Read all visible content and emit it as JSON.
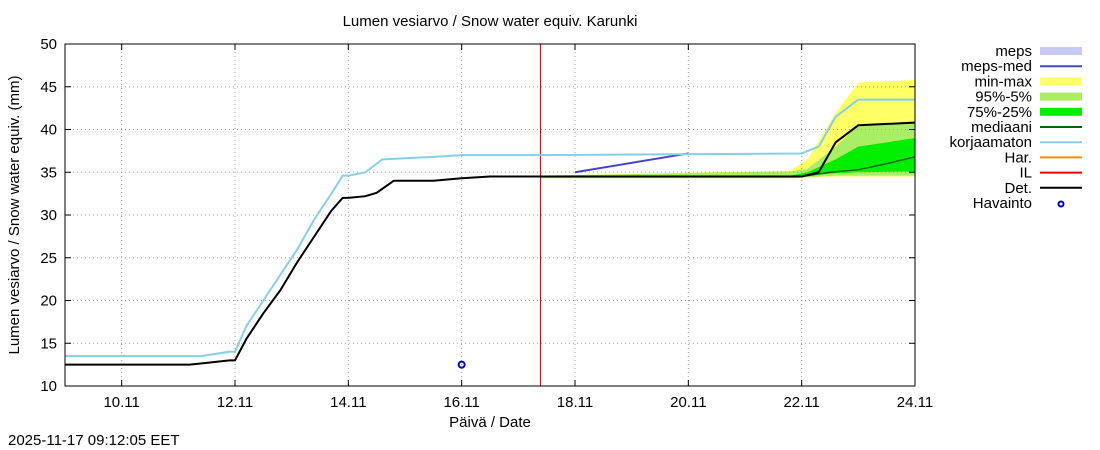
{
  "chart_data": {
    "type": "line",
    "title": "Lumen vesiarvo / Snow water equiv.  Karunki",
    "xlabel": "Päivä / Date",
    "ylabel": "Lumen vesiarvo / Snow water equiv. (mm)",
    "x_unit": "days since 10.11 00:00",
    "xlim": [
      -1,
      14
    ],
    "ylim": [
      10,
      50
    ],
    "y_ticks": [
      10,
      15,
      20,
      25,
      30,
      35,
      40,
      45,
      50
    ],
    "x_ticks": [
      {
        "x": 0,
        "label": "10.11"
      },
      {
        "x": 2,
        "label": "12.11"
      },
      {
        "x": 4,
        "label": "14.11"
      },
      {
        "x": 6,
        "label": "16.11"
      },
      {
        "x": 8,
        "label": "18.11"
      },
      {
        "x": 10,
        "label": "20.11"
      },
      {
        "x": 12,
        "label": "22.11"
      },
      {
        "x": 14,
        "label": "24.11"
      }
    ],
    "grid": true,
    "forecast_start_x": 7.39,
    "colors": {
      "meps": "#c8c8f5",
      "meps_med": "#4545cc",
      "min_max": "#ffff66",
      "p95_5": "#aaee66",
      "p75_25": "#00ee00",
      "mediaani": "#006400",
      "korjaamaton": "#87ceeb",
      "har": "#ff8c00",
      "il": "#ff0000",
      "det": "#000000",
      "havainto": "#0000cc",
      "forecast_line": "#cc0000"
    },
    "legend": [
      {
        "key": "meps",
        "label": "meps",
        "style": "fill"
      },
      {
        "key": "meps_med",
        "label": "meps-med",
        "style": "line"
      },
      {
        "key": "min_max",
        "label": "min-max",
        "style": "fill"
      },
      {
        "key": "p95_5",
        "label": "95%-5%",
        "style": "fill"
      },
      {
        "key": "p75_25",
        "label": "75%-25%",
        "style": "fill"
      },
      {
        "key": "mediaani",
        "label": "mediaani",
        "style": "line"
      },
      {
        "key": "korjaamaton",
        "label": "korjaamaton",
        "style": "line"
      },
      {
        "key": "har",
        "label": "Har.",
        "style": "line"
      },
      {
        "key": "il",
        "label": "IL",
        "style": "line"
      },
      {
        "key": "det",
        "label": "Det.",
        "style": "line"
      },
      {
        "key": "havainto",
        "label": "Havainto",
        "style": "point"
      }
    ],
    "series": {
      "det": {
        "x": [
          -1,
          1.2,
          1.5,
          1.9,
          2.0,
          2.2,
          2.5,
          2.8,
          3.1,
          3.4,
          3.7,
          3.9,
          4.0,
          4.3,
          4.5,
          4.8,
          5.5,
          6.0,
          6.5,
          7.4,
          12.0,
          12.3,
          12.6,
          13.0,
          14.0
        ],
        "y": [
          12.5,
          12.5,
          12.7,
          13.0,
          13.0,
          15.5,
          18.5,
          21.2,
          24.5,
          27.5,
          30.5,
          32.0,
          32.0,
          32.2,
          32.6,
          34.0,
          34.0,
          34.3,
          34.5,
          34.5,
          34.5,
          35.0,
          38.5,
          40.5,
          40.8
        ]
      },
      "korjaamaton": {
        "x": [
          -1,
          1.4,
          1.9,
          2.0,
          2.2,
          2.5,
          2.8,
          3.1,
          3.4,
          3.7,
          3.9,
          4.0,
          4.3,
          4.6,
          5.5,
          6.0,
          6.5,
          7.4,
          12.0,
          12.3,
          12.6,
          13.0,
          14.0
        ],
        "y": [
          13.5,
          13.5,
          14.0,
          14.0,
          17.0,
          20.0,
          23.0,
          26.0,
          29.5,
          32.5,
          34.6,
          34.6,
          35.0,
          36.5,
          36.8,
          37.0,
          37.0,
          37.0,
          37.2,
          38.0,
          41.5,
          43.5,
          43.5
        ]
      },
      "meps_med": {
        "x": [
          8.0,
          10.0
        ],
        "y": [
          35.0,
          37.2
        ]
      },
      "mediaani": {
        "x": [
          7.4,
          12.0,
          12.5,
          13.0,
          13.5,
          14.0
        ],
        "y": [
          34.5,
          34.5,
          35.0,
          35.3,
          36.0,
          36.8
        ]
      },
      "min_max": {
        "x": [
          7.4,
          11.8,
          12.1,
          12.6,
          13.0,
          14.0
        ],
        "lower": [
          34.3,
          34.3,
          34.4,
          34.5,
          34.5,
          34.5
        ],
        "upper": [
          34.6,
          35.2,
          36.5,
          42.0,
          45.5,
          45.8
        ]
      },
      "p95_5": {
        "x": [
          7.4,
          11.8,
          12.1,
          12.6,
          13.0,
          14.0
        ],
        "lower": [
          34.3,
          34.3,
          34.4,
          34.6,
          34.6,
          34.6
        ],
        "upper": [
          34.6,
          35.1,
          35.4,
          38.0,
          40.5,
          41.0
        ]
      },
      "p75_25": {
        "x": [
          7.4,
          11.8,
          12.1,
          12.6,
          13.0,
          14.0
        ],
        "lower": [
          34.4,
          34.4,
          34.6,
          34.9,
          35.0,
          35.1
        ],
        "upper": [
          34.5,
          34.6,
          35.0,
          36.5,
          38.0,
          39.0
        ]
      },
      "havainto": {
        "x": [
          6.0
        ],
        "y": [
          12.5
        ]
      }
    }
  },
  "footer": {
    "timestamp": "2025-11-17 09:12:05 EET"
  }
}
